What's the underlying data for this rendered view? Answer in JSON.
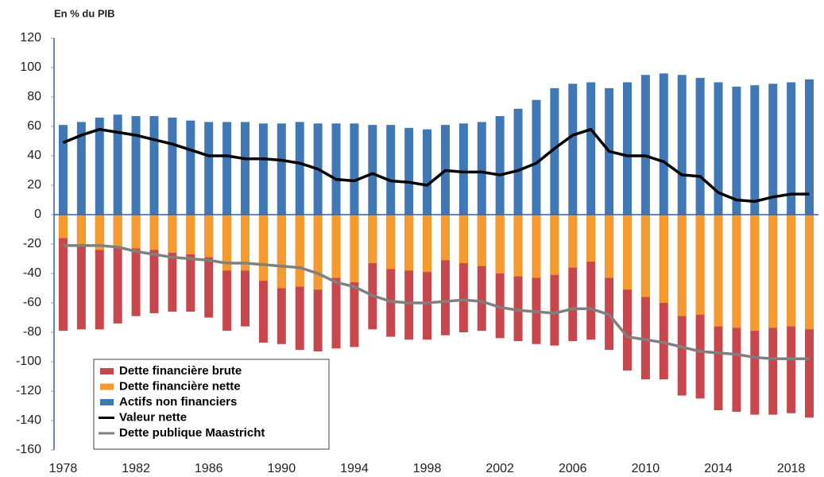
{
  "chart_data": {
    "type": "bar",
    "title": "En % du PIB",
    "categories": [
      1978,
      null,
      null,
      null,
      1982,
      null,
      null,
      null,
      1986,
      null,
      null,
      null,
      1990,
      null,
      null,
      null,
      1994,
      null,
      null,
      null,
      1998,
      null,
      null,
      null,
      2002,
      null,
      null,
      null,
      2006,
      null,
      null,
      null,
      2010,
      null,
      null,
      null,
      2014,
      null,
      null,
      null,
      2018,
      null
    ],
    "series": [
      {
        "name": "Dette financière brute",
        "type": "bar",
        "color": "#c8474c",
        "values": [
          -79,
          -78,
          -78,
          -74,
          -69,
          -67,
          -66,
          -66,
          -70,
          -79,
          -76,
          -87,
          -88,
          -92,
          -93,
          -91,
          -90,
          -78,
          -83,
          -85,
          -85,
          -82,
          -80,
          -79,
          -84,
          -86,
          -88,
          -89,
          -86,
          -85,
          -92,
          -106,
          -112,
          -112,
          -123,
          -125,
          -133,
          -134,
          -136,
          -136,
          -135,
          -138
        ]
      },
      {
        "name": "Dette financière nette",
        "type": "bar",
        "color": "#f59a2e",
        "values": [
          -16,
          -20,
          -24,
          -22,
          -23,
          -24,
          -26,
          -27,
          -29,
          -38,
          -38,
          -45,
          -50,
          -49,
          -51,
          -43,
          -46,
          -33,
          -37,
          -38,
          -39,
          -31,
          -33,
          -35,
          -40,
          -42,
          -43,
          -41,
          -36,
          -32,
          -43,
          -51,
          -56,
          -60,
          -69,
          -68,
          -76,
          -77,
          -79,
          -77,
          -76,
          -78
        ]
      },
      {
        "name": "Actifs non financiers",
        "type": "bar",
        "color": "#3f78b5",
        "values": [
          61,
          63,
          66,
          68,
          67,
          67,
          66,
          64,
          63,
          63,
          63,
          62,
          62,
          63,
          62,
          62,
          62,
          61,
          61,
          59,
          58,
          61,
          62,
          63,
          67,
          72,
          78,
          86,
          89,
          90,
          86,
          90,
          95,
          96,
          95,
          93,
          90,
          87,
          88,
          89,
          90,
          92
        ]
      },
      {
        "name": "Valeur nette",
        "type": "line",
        "color": "#000000",
        "values": [
          49,
          54,
          58,
          56,
          54,
          51,
          48,
          44,
          40,
          40,
          38,
          38,
          37,
          35,
          31,
          24,
          23,
          28,
          23,
          22,
          20,
          30,
          29,
          29,
          27,
          30,
          35,
          45,
          54,
          58,
          43,
          40,
          40,
          36,
          27,
          26,
          15,
          10,
          9,
          12,
          14,
          14
        ]
      },
      {
        "name": "Dette publique Maastricht",
        "type": "line",
        "color": "#808080",
        "values": [
          -21,
          -21,
          -21,
          -22,
          -25,
          -27,
          -29,
          -30,
          -31,
          -33,
          -33,
          -34,
          -35,
          -36,
          -40,
          -46,
          -49,
          -55,
          -59,
          -60,
          -60,
          -59,
          -58,
          -59,
          -63,
          -65,
          -66,
          -67,
          -64,
          -64,
          -68,
          -83,
          -85,
          -87,
          -90,
          -93,
          -94,
          -95,
          -97,
          -98,
          -98,
          -98
        ]
      }
    ],
    "ylim": [
      -160,
      120
    ],
    "yticks": [
      -160,
      -140,
      -120,
      -100,
      -80,
      -60,
      -40,
      -20,
      0,
      20,
      40,
      60,
      80,
      100,
      120
    ],
    "grid": false,
    "legend": "lower-left"
  }
}
